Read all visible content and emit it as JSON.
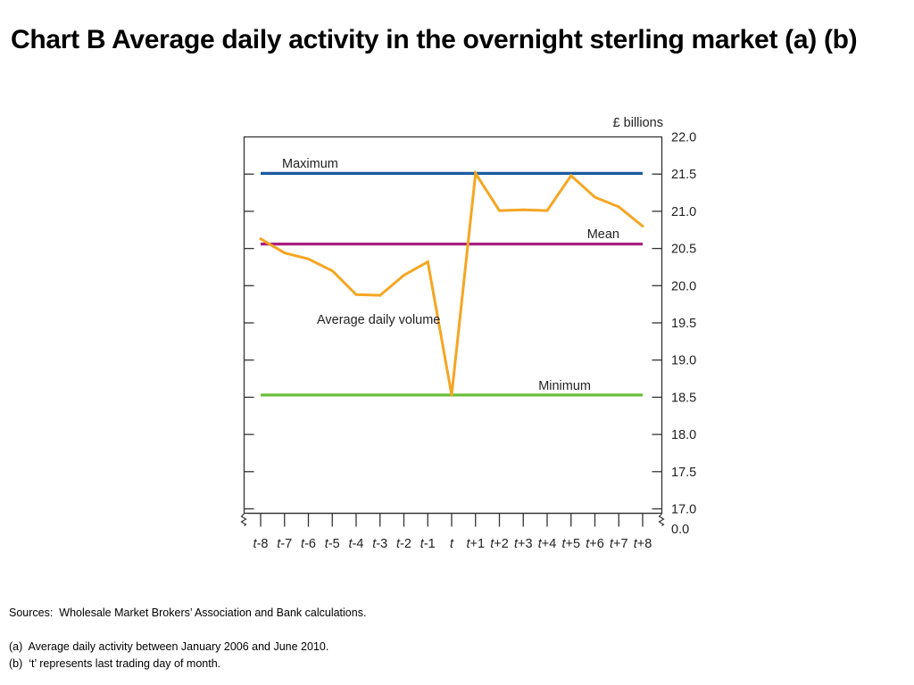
{
  "title": "Chart B  Average daily activity in the overnight sterling market (a) (b)",
  "notes": {
    "sources": "Sources:  Wholesale Market Brokers’ Association and Bank calculations.",
    "a": "(a)  Average daily activity between January 2006 and June 2010.",
    "b": "(b)  ‘t’ represents last trading day of month."
  },
  "chart_data": {
    "type": "line",
    "unit_label": "£ billions",
    "x": [
      "t-8",
      "t-7",
      "t-6",
      "t-5",
      "t-4",
      "t-3",
      "t-2",
      "t-1",
      "t",
      "t+1",
      "t+2",
      "t+3",
      "t+4",
      "t+5",
      "t+6",
      "t+7",
      "t+8"
    ],
    "ylim": [
      17.0,
      22.0
    ],
    "y_ticks": [
      "22.0",
      "21.5",
      "21.0",
      "20.5",
      "20.0",
      "19.5",
      "19.0",
      "18.5",
      "18.0",
      "17.5",
      "17.0"
    ],
    "y_axis_break_label": "0.0",
    "axis_break": true,
    "y_axis_side": "right",
    "grid": false,
    "series": [
      {
        "name": "Average daily volume",
        "color": "#f5a623",
        "values": [
          20.63,
          20.44,
          20.36,
          20.2,
          19.88,
          19.87,
          20.14,
          20.32,
          18.53,
          21.51,
          21.01,
          21.02,
          21.01,
          21.48,
          21.19,
          21.06,
          20.8
        ]
      },
      {
        "name": "Maximum",
        "color": "#1a5aa0",
        "values": [
          21.51,
          21.51,
          21.51,
          21.51,
          21.51,
          21.51,
          21.51,
          21.51,
          21.51,
          21.51,
          21.51,
          21.51,
          21.51,
          21.51,
          21.51,
          21.51,
          21.51
        ]
      },
      {
        "name": "Mean",
        "color": "#a8217f",
        "values": [
          20.56,
          20.56,
          20.56,
          20.56,
          20.56,
          20.56,
          20.56,
          20.56,
          20.56,
          20.56,
          20.56,
          20.56,
          20.56,
          20.56,
          20.56,
          20.56,
          20.56
        ]
      },
      {
        "name": "Minimum",
        "color": "#6abf3a",
        "values": [
          18.53,
          18.53,
          18.53,
          18.53,
          18.53,
          18.53,
          18.53,
          18.53,
          18.53,
          18.53,
          18.53,
          18.53,
          18.53,
          18.53,
          18.53,
          18.53,
          18.53
        ]
      }
    ]
  }
}
